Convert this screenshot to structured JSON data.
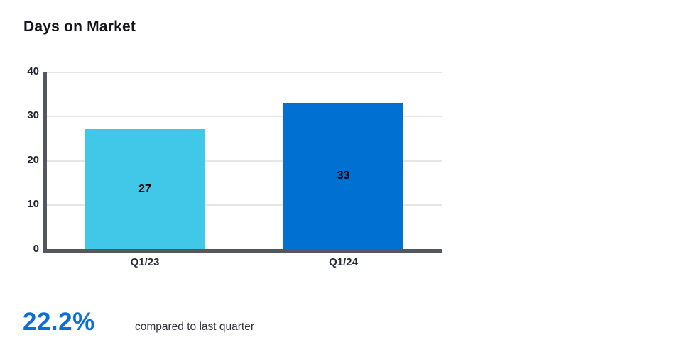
{
  "header": {
    "title": "Days on Market"
  },
  "chart_data": {
    "type": "bar",
    "title": "Days on Market",
    "categories": [
      "Q1/23",
      "Q1/24"
    ],
    "values": [
      27,
      33
    ],
    "bar_colors": [
      "#41C7E8",
      "#0070D2"
    ],
    "ylim": [
      0,
      40
    ],
    "yticks": [
      0,
      10,
      20,
      30,
      40
    ],
    "ytick_labels_top_down": [
      "40",
      "30",
      "20",
      "10",
      "0"
    ],
    "grid": true,
    "legend": "none",
    "data_labels": "inside-center",
    "xlabel": "",
    "ylabel": ""
  },
  "footer": {
    "change_value": "22.2%",
    "change_caption": "compared to last quarter",
    "accent_color": "#0B6FD6"
  },
  "colors": {
    "axis": "#54575E",
    "gridline": "#E6E6E9",
    "title_text": "#15151B",
    "tick_text": "#20242E",
    "bar_label_text": "#000000",
    "background": "#FFFFFF"
  }
}
